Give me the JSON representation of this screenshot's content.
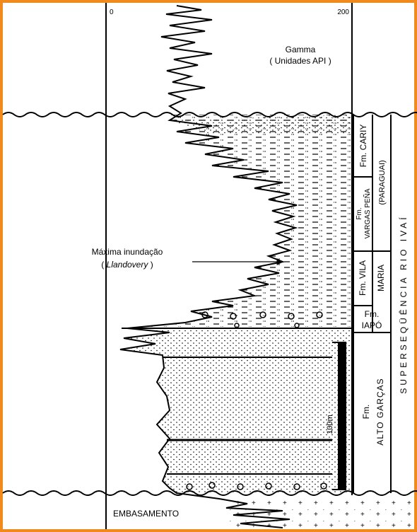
{
  "axis": {
    "min_label": "0",
    "max_label": "200"
  },
  "curve_label": {
    "title": "Gamma",
    "units": "( Unidades API )"
  },
  "annotation": {
    "text": "Máxima inundação",
    "age_parts": [
      "( ",
      "Llandovery",
      " )"
    ]
  },
  "formations": [
    {
      "lines": [
        "Fm. CARIY"
      ]
    },
    {
      "lines": [
        "Fm.",
        "VARGAS PEÑA"
      ]
    },
    {
      "lines": [
        "Fm. VILA",
        "MARIA"
      ]
    },
    {
      "lines": [
        "Fm.",
        "IAPÓ"
      ]
    },
    {
      "lines": [
        "Fm.",
        "ALTO GARÇAS"
      ]
    }
  ],
  "group": "(PARAGUAI)",
  "supersequence": "SUPERSEQÜÊNCIA RIO IVAÍ",
  "scale_bar": "100m",
  "basement": "EMBASAMENTO"
}
